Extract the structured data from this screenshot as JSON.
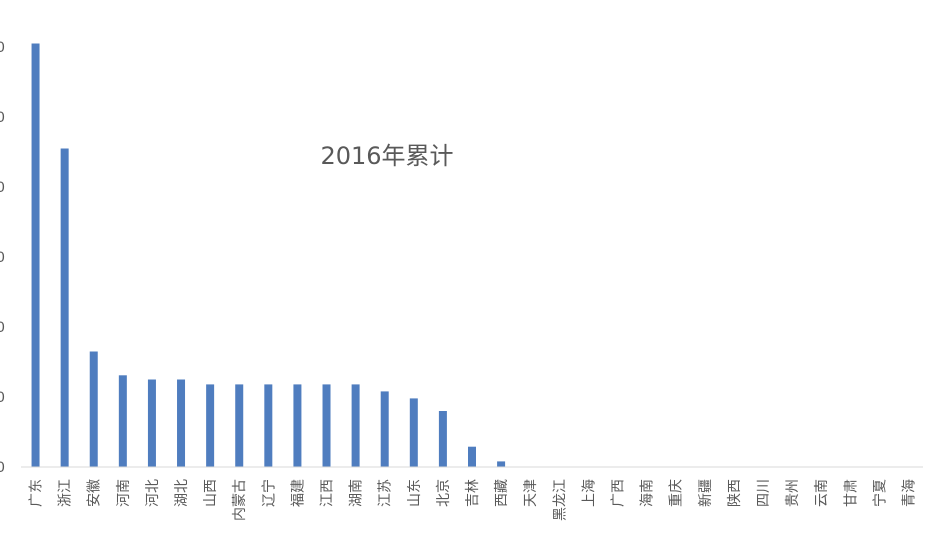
{
  "chart_data": {
    "type": "bar",
    "title": "2016年累计",
    "xlabel": "",
    "ylabel": "",
    "ylim": [
      0,
      60
    ],
    "y_ticks": [
      "0",
      "0",
      "0",
      "0",
      "0",
      "0",
      "0"
    ],
    "grid": false,
    "bar_color": "#4F7DBF",
    "categories": [
      "广东",
      "浙江",
      "安徽",
      "河南",
      "河北",
      "湖北",
      "山西",
      "内蒙古",
      "辽宁",
      "福建",
      "江西",
      "湖南",
      "江苏",
      "山东",
      "北京",
      "吉林",
      "西藏",
      "天津",
      "黑龙江",
      "上海",
      "广西",
      "海南",
      "重庆",
      "新疆",
      "陕西",
      "四川",
      "贵州",
      "云南",
      "甘肃",
      "宁夏",
      "青海"
    ],
    "series": [
      {
        "values": [
          60.5,
          45.5,
          16.5,
          13.1,
          12.5,
          12.5,
          11.8,
          11.8,
          11.8,
          11.8,
          11.8,
          11.8,
          10.8,
          9.8,
          8.0,
          2.9,
          0.8,
          0,
          0,
          0,
          0,
          0,
          0,
          0,
          0,
          0,
          0,
          0,
          0,
          0,
          0
        ]
      }
    ]
  }
}
